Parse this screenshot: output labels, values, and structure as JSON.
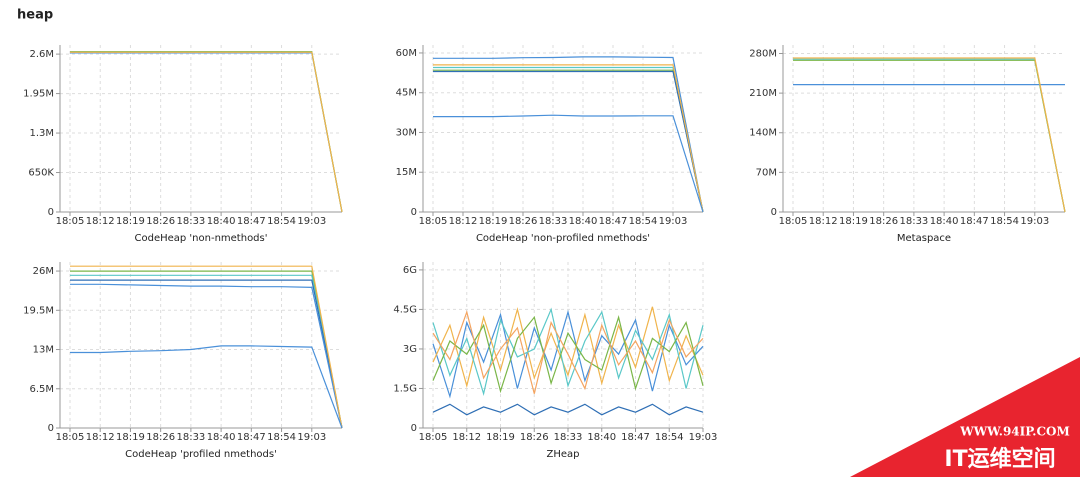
{
  "title": "heap",
  "watermark": {
    "url": "WWW.94IP.COM",
    "name": "IT运维空间"
  },
  "chart_data": [
    {
      "type": "line",
      "title": "CodeHeap 'non-nmethods'",
      "categories": [
        "18:05",
        "18:12",
        "18:19",
        "18:26",
        "18:33",
        "18:40",
        "18:47",
        "18:54",
        "19:03",
        null
      ],
      "series": [
        {
          "color": "#4a90d9",
          "values": [
            2.62,
            2.62,
            2.62,
            2.62,
            2.62,
            2.62,
            2.62,
            2.62,
            2.62,
            0
          ]
        },
        {
          "color": "#7ab648",
          "values": [
            2.64,
            2.64,
            2.64,
            2.64,
            2.64,
            2.64,
            2.64,
            2.64,
            2.64,
            0
          ]
        },
        {
          "color": "#f0b44c",
          "values": [
            2.63,
            2.63,
            2.63,
            2.63,
            2.63,
            2.63,
            2.63,
            2.63,
            2.63,
            0
          ]
        }
      ],
      "ylim": [
        0,
        2.75
      ],
      "yticks": [
        0,
        {
          "value": 0.65,
          "label": "650K"
        },
        {
          "value": 1.3,
          "label": "1.3M"
        },
        {
          "value": 1.95,
          "label": "1.95M"
        },
        {
          "value": 2.6,
          "label": "2.6M"
        }
      ],
      "grid": true
    },
    {
      "type": "line",
      "title": "CodeHeap 'non-profiled nmethods'",
      "categories": [
        "18:05",
        "18:12",
        "18:19",
        "18:26",
        "18:33",
        "18:40",
        "18:47",
        "18:54",
        "19:03",
        null
      ],
      "series": [
        {
          "color": "#4a90d9",
          "values": [
            58,
            58,
            58,
            58.2,
            58.3,
            58.5,
            58.5,
            58.4,
            58.3,
            0
          ]
        },
        {
          "color": "#5ac8c8",
          "values": [
            54.5,
            54.5,
            54.5,
            54.5,
            54.5,
            54.5,
            54.5,
            54.5,
            54.5,
            0
          ]
        },
        {
          "color": "#7ab648",
          "values": [
            53.5,
            53.5,
            53.5,
            53.5,
            53.5,
            53.5,
            53.5,
            53.5,
            53.5,
            0
          ]
        },
        {
          "color": "#2f6fb5",
          "values": [
            53,
            53,
            53,
            53,
            53,
            53,
            53,
            53,
            53,
            0
          ]
        },
        {
          "color": "#f0b44c",
          "values": [
            55.5,
            55.5,
            55.5,
            55.5,
            55.5,
            55.5,
            55.5,
            55.5,
            55.5,
            0
          ]
        },
        {
          "color": "#4a90d9",
          "values": [
            36,
            36,
            36,
            36.2,
            36.5,
            36.2,
            36.2,
            36.3,
            36.3,
            0
          ]
        }
      ],
      "ylim": [
        0,
        63
      ],
      "yticks": [
        0,
        {
          "value": 15,
          "label": "15M"
        },
        {
          "value": 30,
          "label": "30M"
        },
        {
          "value": 45,
          "label": "45M"
        },
        {
          "value": 60,
          "label": "60M"
        }
      ],
      "grid": true
    },
    {
      "type": "line",
      "title": "Metaspace",
      "categories": [
        "18:05",
        "18:12",
        "18:19",
        "18:26",
        "18:33",
        "18:40",
        "18:47",
        "18:54",
        "19:03",
        null
      ],
      "series": [
        {
          "color": "#5ac8c8",
          "values": [
            270,
            270,
            270,
            270,
            270,
            270,
            270,
            270,
            270,
            0
          ]
        },
        {
          "color": "#7ab648",
          "values": [
            268,
            268,
            268,
            268,
            268,
            268,
            268,
            268,
            268,
            0
          ]
        },
        {
          "color": "#4a90d9",
          "values": [
            225,
            225,
            225,
            225,
            225,
            225,
            225,
            225,
            225,
            225
          ]
        },
        {
          "color": "#f0b44c",
          "values": [
            272,
            272,
            272,
            272,
            272,
            272,
            272,
            272,
            272,
            0
          ]
        }
      ],
      "ylim": [
        0,
        295
      ],
      "yticks": [
        0,
        {
          "value": 70,
          "label": "70M"
        },
        {
          "value": 140,
          "label": "140M"
        },
        {
          "value": 210,
          "label": "210M"
        },
        {
          "value": 280,
          "label": "280M"
        }
      ],
      "grid": true
    },
    {
      "type": "line",
      "title": "CodeHeap 'profiled nmethods'",
      "categories": [
        "18:05",
        "18:12",
        "18:19",
        "18:26",
        "18:33",
        "18:40",
        "18:47",
        "18:54",
        "19:03",
        null
      ],
      "series": [
        {
          "color": "#7ab648",
          "values": [
            26,
            26,
            26,
            26,
            26,
            26,
            26,
            26,
            26,
            0
          ]
        },
        {
          "color": "#5ac8c8",
          "values": [
            25.3,
            25.3,
            25.3,
            25.3,
            25.3,
            25.3,
            25.3,
            25.3,
            25.3,
            0
          ]
        },
        {
          "color": "#2f6fb5",
          "values": [
            24.5,
            24.5,
            24.5,
            24.5,
            24.5,
            24.5,
            24.5,
            24.5,
            24.5,
            0
          ]
        },
        {
          "color": "#4a90d9",
          "values": [
            23.8,
            23.8,
            23.7,
            23.6,
            23.5,
            23.5,
            23.4,
            23.4,
            23.3,
            0
          ]
        },
        {
          "color": "#f0b44c",
          "values": [
            26.8,
            26.8,
            26.8,
            26.8,
            26.8,
            26.8,
            26.8,
            26.8,
            26.8,
            0
          ]
        },
        {
          "color": "#4a90d9",
          "values": [
            12.5,
            12.5,
            12.7,
            12.8,
            13,
            13.6,
            13.6,
            13.5,
            13.4,
            0
          ]
        }
      ],
      "ylim": [
        0,
        27.5
      ],
      "yticks": [
        0,
        {
          "value": 6.5,
          "label": "6.5M"
        },
        {
          "value": 13,
          "label": "13M"
        },
        {
          "value": 19.5,
          "label": "19.5M"
        },
        {
          "value": 26,
          "label": "26M"
        }
      ],
      "grid": true
    },
    {
      "type": "line",
      "title": "ZHeap",
      "categories": [
        "18:05",
        null,
        "18:12",
        null,
        "18:19",
        null,
        "18:26",
        null,
        "18:33",
        null,
        "18:40",
        null,
        "18:47",
        null,
        "18:54",
        null,
        "19:03"
      ],
      "series": [
        {
          "color": "#4a90d9",
          "values": [
            3.2,
            1.2,
            4.0,
            2.5,
            4.3,
            1.5,
            3.8,
            2.2,
            4.4,
            1.8,
            3.5,
            2.8,
            4.1,
            1.4,
            3.9,
            2.4,
            3.1
          ]
        },
        {
          "color": "#f0b44c",
          "values": [
            2.5,
            3.9,
            1.6,
            4.2,
            2.2,
            4.5,
            1.9,
            3.6,
            2.0,
            4.3,
            1.7,
            3.9,
            2.3,
            4.6,
            1.8,
            3.5,
            2.0
          ]
        },
        {
          "color": "#5ac8c8",
          "values": [
            4.0,
            2.0,
            3.4,
            1.3,
            4.1,
            2.7,
            3.0,
            4.5,
            1.6,
            3.3,
            4.4,
            1.9,
            3.7,
            2.6,
            4.3,
            1.5,
            3.9
          ]
        },
        {
          "color": "#7ab648",
          "values": [
            1.8,
            3.3,
            2.8,
            3.9,
            1.4,
            3.4,
            4.2,
            1.7,
            3.6,
            2.6,
            2.2,
            4.2,
            1.5,
            3.4,
            2.9,
            4.0,
            1.6
          ]
        },
        {
          "color": "#f4a460",
          "values": [
            3.6,
            2.6,
            4.4,
            1.9,
            3.0,
            3.8,
            1.3,
            4.0,
            2.8,
            1.5,
            3.9,
            2.4,
            3.3,
            2.1,
            4.1,
            2.7,
            3.4
          ]
        },
        {
          "color": "#2f6fb5",
          "values": [
            0.6,
            0.9,
            0.5,
            0.8,
            0.6,
            0.9,
            0.5,
            0.8,
            0.6,
            0.9,
            0.5,
            0.8,
            0.6,
            0.9,
            0.5,
            0.8,
            0.6
          ]
        }
      ],
      "ylim": [
        0,
        6.3
      ],
      "yticks": [
        0,
        {
          "value": 1.5,
          "label": "1.5G"
        },
        {
          "value": 3,
          "label": "3G"
        },
        {
          "value": 4.5,
          "label": "4.5G"
        },
        {
          "value": 6,
          "label": "6G"
        }
      ],
      "grid": true
    }
  ]
}
